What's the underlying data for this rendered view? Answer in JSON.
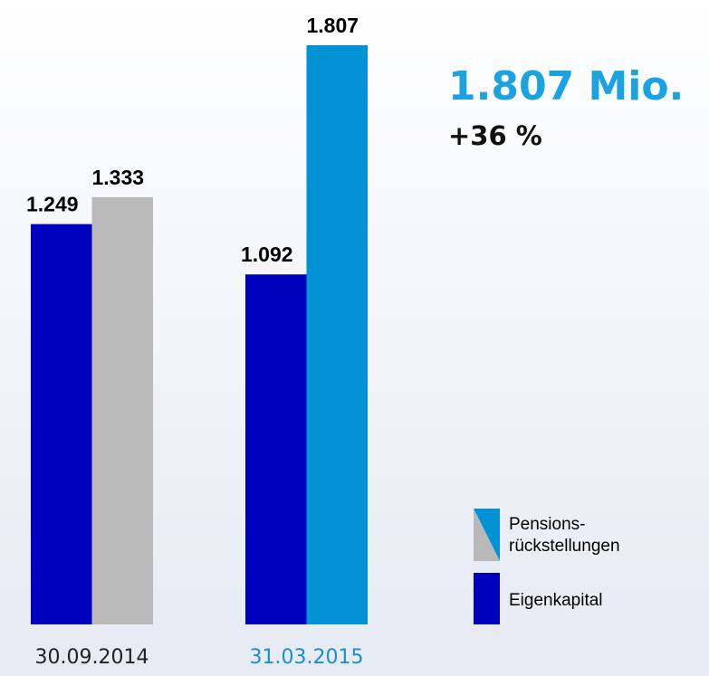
{
  "chart_data": {
    "type": "bar",
    "categories": [
      "30.09.2014",
      "31.03.2015"
    ],
    "category_colors": [
      "#222222",
      "#1a8fd0"
    ],
    "series": [
      {
        "name": "Eigenkapital",
        "color": "#0000bf",
        "values": [
          1249,
          1092
        ],
        "value_labels": [
          "1.249",
          "1.092"
        ]
      },
      {
        "name": "Pensions-rückstellungen",
        "colors": [
          "#b9b9b9",
          "#0092d2"
        ],
        "values": [
          1333,
          1807
        ],
        "value_labels": [
          "1.333",
          "1.807"
        ]
      }
    ],
    "annotations": [
      {
        "text": "1.807 Mio.",
        "color": "#1aa3e0"
      },
      {
        "text": "+36 %",
        "color": "#111111"
      }
    ]
  }
}
